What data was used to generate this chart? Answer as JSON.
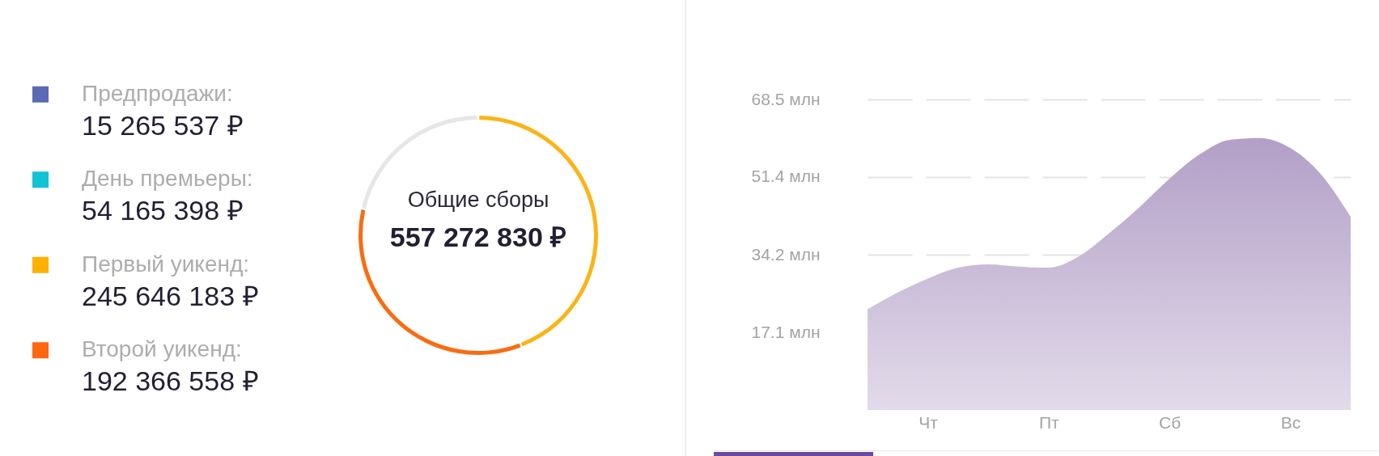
{
  "chart_data": [
    {
      "type": "other",
      "annotations": [
        "Предпродажи:",
        "15 265 537 ₽",
        "День премьеры:",
        "54 165 398 ₽",
        "Первый уикенд:",
        "245 646 183 ₽",
        "Второй уикенд:",
        "192 366 558 ₽"
      ],
      "colors": [
        "#5a6ab4",
        "#10c3d5",
        "#ffb000",
        "#ff6610"
      ]
    },
    {
      "type": "donut",
      "title": "Общие сборы",
      "subtitle": "557 272 830 ₽",
      "categories": [
        null,
        null,
        null
      ],
      "values": [
        44.1,
        34.5,
        21.4
      ],
      "colors": [
        "#fbb417",
        "#f96c12",
        "#e6e6e6"
      ]
    },
    {
      "type": "area",
      "categories": [
        null,
        null,
        "Чт",
        null,
        null,
        null,
        "Пт",
        null,
        null,
        null,
        "Сб",
        null,
        null,
        null,
        "Вс",
        null,
        null
      ],
      "values": [
        22.2,
        25.9,
        29.0,
        31.4,
        32.1,
        31.6,
        31.4,
        33.9,
        39.0,
        44.7,
        51.0,
        56.4,
        59.6,
        60.0,
        57.8,
        52.1,
        42.6
      ],
      "color": "#b39fc7",
      "ylim": [
        2.5,
        68.5
      ],
      "yticks": [
        {
          "value": 17.1,
          "label": "17.1 млн"
        },
        {
          "value": 34.2,
          "label": "34.2 млн"
        },
        {
          "value": 51.4,
          "label": "51.4 млн"
        },
        {
          "value": 68.5,
          "label": "68.5 млн"
        }
      ],
      "grid": "y"
    }
  ]
}
